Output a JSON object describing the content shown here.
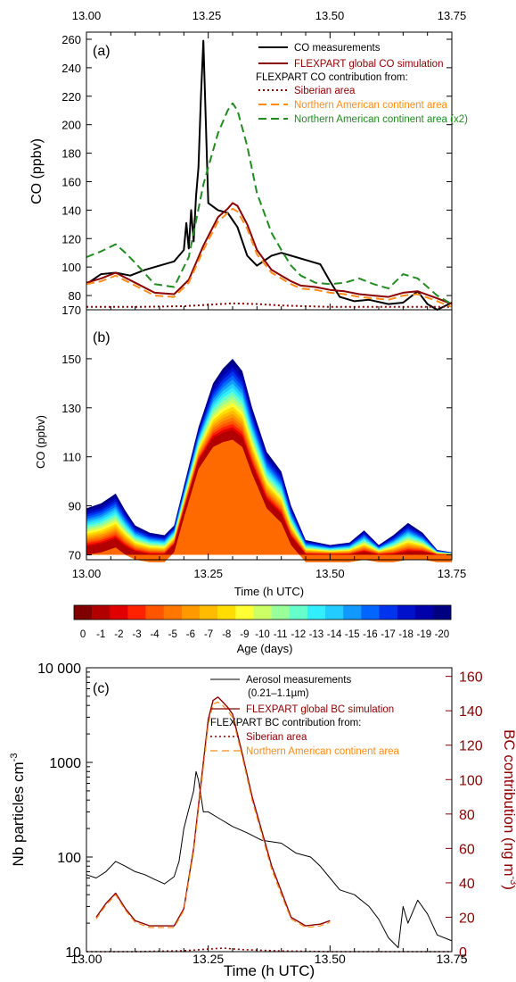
{
  "top_axis": {
    "ticks": [
      "13.00",
      "13.25",
      "13.50",
      "13.75"
    ]
  },
  "panel_a": {
    "label": "(a)",
    "ylabel": "CO (ppbv)",
    "yticks": [
      "80",
      "100",
      "120",
      "140",
      "160",
      "180",
      "200",
      "220",
      "240",
      "260"
    ],
    "legend": {
      "co_measurements": "CO measurements",
      "flexpart_global": "FLEXPART global CO simulation",
      "contribution_title": "FLEXPART CO contribution from:",
      "siberian": "Siberian area",
      "north_american": "Northern American continent area",
      "north_american_x2": "Northern American continent area (x2)"
    }
  },
  "panel_b": {
    "label": "(b)",
    "ylabel": "CO (ppbv)",
    "xlabel": "Time (h UTC)",
    "yticks": [
      "70",
      "90",
      "110",
      "130",
      "150",
      "170"
    ],
    "xticks": [
      "13.00",
      "13.25",
      "13.50",
      "13.75"
    ],
    "colorbar_ticks": [
      "0",
      "-1",
      "-2",
      "-3",
      "-4",
      "-5",
      "-6",
      "-7",
      "-8",
      "-9",
      "-10",
      "-11",
      "-12",
      "-13",
      "-14",
      "-15",
      "-16",
      "-17",
      "-18",
      "-19",
      "-20"
    ],
    "colorbar_label": "Age (days)"
  },
  "panel_c": {
    "label": "(c)",
    "ylabel_left": "Nb particles cm",
    "ylabel_left_sup": "-3",
    "ylabel_right": "BC contribution (ng m",
    "ylabel_right_sup": "-3",
    "ylabel_right_end": ")",
    "yticks_left": [
      "10",
      "100",
      "1000",
      "10 000"
    ],
    "yticks_right": [
      "0",
      "20",
      "40",
      "60",
      "80",
      "100",
      "120",
      "140",
      "160"
    ],
    "xticks": [
      "13.00",
      "13.25",
      "13.50",
      "13.75"
    ],
    "xlabel": "Time (h UTC)",
    "legend": {
      "aerosol": "Aerosol   measurements",
      "aerosol_range": "(0.21–1.1µm)",
      "flexpart_bc": "FLEXPART global BC simulation",
      "contribution_title": "FLEXPART BC contribution from:",
      "siberian": "Siberian area",
      "north_american": "Northern American continent area"
    }
  },
  "colors": {
    "measurements": "#000000",
    "global": "#8b0000",
    "siberian": "#8b0000",
    "north_american": "#ff8c1a",
    "north_american_x2": "#228b22",
    "right_axis": "#8b0000"
  },
  "colormap": [
    "#7f0000",
    "#b20000",
    "#e00000",
    "#ff2200",
    "#ff5500",
    "#ff7700",
    "#ff9900",
    "#ffbb00",
    "#ffdd00",
    "#ffff33",
    "#ccff66",
    "#99ff99",
    "#66ffcc",
    "#33eeff",
    "#22ccff",
    "#1199ff",
    "#0066ff",
    "#0033ee",
    "#0011cc",
    "#0000aa",
    "#000080"
  ],
  "chart_data": [
    {
      "type": "line",
      "panel": "a",
      "xlim": [
        13.0,
        13.75
      ],
      "ylim": [
        70,
        265
      ],
      "ylabel": "CO (ppbv)",
      "series": [
        {
          "name": "CO measurements",
          "x": [
            13.0,
            13.03,
            13.06,
            13.09,
            13.12,
            13.15,
            13.18,
            13.2,
            13.205,
            13.21,
            13.215,
            13.22,
            13.225,
            13.23,
            13.235,
            13.24,
            13.25,
            13.27,
            13.29,
            13.31,
            13.33,
            13.35,
            13.38,
            13.4,
            13.43,
            13.46,
            13.48,
            13.5,
            13.52,
            13.55,
            13.58,
            13.62,
            13.65,
            13.68,
            13.7,
            13.72,
            13.75
          ],
          "y": [
            88,
            95,
            96,
            94,
            98,
            101,
            104,
            112,
            131,
            113,
            140,
            118,
            150,
            170,
            220,
            259,
            145,
            140,
            138,
            128,
            108,
            101,
            108,
            110,
            107,
            104,
            102,
            90,
            79,
            76,
            77,
            74,
            75,
            83,
            74,
            70,
            75
          ]
        },
        {
          "name": "FLEXPART global CO simulation",
          "x": [
            13.0,
            13.03,
            13.06,
            13.1,
            13.14,
            13.18,
            13.21,
            13.24,
            13.27,
            13.29,
            13.3,
            13.31,
            13.33,
            13.35,
            13.38,
            13.4,
            13.42,
            13.44,
            13.47,
            13.5,
            13.53,
            13.56,
            13.59,
            13.62,
            13.65,
            13.68,
            13.72,
            13.75
          ],
          "y": [
            89,
            92,
            96,
            89,
            82,
            81,
            91,
            115,
            135,
            141,
            145,
            143,
            130,
            112,
            98,
            94,
            90,
            87,
            86,
            84,
            83,
            81,
            80,
            79,
            82,
            83,
            78,
            74
          ]
        },
        {
          "name": "Siberian area",
          "x": [
            13.0,
            13.1,
            13.2,
            13.25,
            13.3,
            13.35,
            13.4,
            13.5,
            13.6,
            13.75
          ],
          "y": [
            72,
            72,
            72.5,
            73.5,
            74.5,
            74,
            73,
            72,
            72,
            72
          ]
        },
        {
          "name": "Northern American continent area",
          "x": [
            13.0,
            13.03,
            13.06,
            13.1,
            13.14,
            13.18,
            13.21,
            13.24,
            13.27,
            13.29,
            13.3,
            13.31,
            13.33,
            13.35,
            13.38,
            13.4,
            13.42,
            13.44,
            13.47,
            13.5,
            13.53,
            13.56,
            13.59,
            13.62,
            13.65,
            13.68,
            13.72,
            13.75
          ],
          "y": [
            88,
            90,
            94,
            87,
            80,
            79,
            89,
            112,
            132,
            138,
            141,
            139,
            127,
            109,
            96,
            92,
            88,
            85,
            84,
            82,
            81,
            79,
            78,
            77,
            80,
            81,
            76,
            72
          ]
        },
        {
          "name": "Northern American continent area (x2)",
          "x": [
            13.0,
            13.03,
            13.06,
            13.08,
            13.1,
            13.14,
            13.18,
            13.21,
            13.24,
            13.27,
            13.29,
            13.3,
            13.31,
            13.33,
            13.35,
            13.38,
            13.4,
            13.42,
            13.44,
            13.47,
            13.5,
            13.53,
            13.56,
            13.59,
            13.62,
            13.65,
            13.68,
            13.72,
            13.75
          ],
          "y": [
            107,
            111,
            116,
            110,
            103,
            88,
            86,
            107,
            158,
            194,
            210,
            215,
            210,
            185,
            152,
            124,
            112,
            101,
            94,
            89,
            88,
            89,
            92,
            88,
            85,
            95,
            92,
            80,
            74
          ]
        }
      ]
    },
    {
      "type": "area",
      "panel": "b",
      "xlim": [
        13.0,
        13.75
      ],
      "ylim": [
        68,
        170
      ],
      "ylabel": "CO (ppbv)",
      "xlabel": "Time (h UTC)",
      "x": [
        13.0,
        13.03,
        13.06,
        13.08,
        13.1,
        13.13,
        13.16,
        13.18,
        13.2,
        13.23,
        13.26,
        13.28,
        13.3,
        13.32,
        13.34,
        13.37,
        13.4,
        13.42,
        13.45,
        13.5,
        13.54,
        13.57,
        13.6,
        13.63,
        13.66,
        13.69,
        13.72,
        13.75
      ],
      "total": [
        89,
        91,
        95,
        88,
        82,
        79,
        78,
        82,
        98,
        122,
        140,
        146,
        150,
        145,
        130,
        112,
        104,
        90,
        76,
        74,
        75,
        80,
        74,
        78,
        83,
        79,
        72,
        71
      ],
      "layers_by_age": [
        {
          "age_days": -2,
          "values": [
            73,
            74,
            76,
            73,
            71,
            70,
            70,
            74,
            88,
            108,
            117,
            119,
            120,
            117,
            106,
            92,
            86,
            77,
            70,
            70,
            70,
            71,
            70,
            70,
            71,
            71,
            70,
            70
          ]
        },
        {
          "age_days": -6,
          "values": [
            76,
            77,
            80,
            76,
            73,
            71,
            71,
            76,
            92,
            115,
            130,
            135,
            137,
            133,
            119,
            102,
            94,
            82,
            72,
            71,
            71,
            74,
            71,
            72,
            74,
            73,
            70,
            70
          ]
        },
        {
          "age_days": -10,
          "values": [
            81,
            82,
            86,
            81,
            76,
            74,
            74,
            79,
            95,
            118,
            135,
            141,
            144,
            139,
            125,
            107,
            99,
            86,
            73,
            72,
            72,
            76,
            72,
            74,
            78,
            75,
            71,
            70
          ]
        },
        {
          "age_days": -16,
          "values": [
            85,
            87,
            91,
            85,
            79,
            77,
            76,
            81,
            97,
            120,
            138,
            144,
            147,
            142,
            128,
            110,
            102,
            88,
            75,
            73,
            74,
            78,
            73,
            76,
            81,
            77,
            71,
            70
          ]
        },
        {
          "age_days": -20,
          "values": [
            89,
            91,
            95,
            88,
            82,
            79,
            78,
            82,
            98,
            122,
            140,
            146,
            150,
            145,
            130,
            112,
            104,
            90,
            76,
            74,
            75,
            80,
            74,
            78,
            83,
            79,
            72,
            71
          ]
        }
      ]
    },
    {
      "type": "line",
      "panel": "c",
      "xlim": [
        13.0,
        13.75
      ],
      "ylim_left": [
        10,
        10000
      ],
      "ylim_right": [
        0,
        165
      ],
      "series": [
        {
          "name": "Aerosol   measurements",
          "axis": "left",
          "x": [
            13.0,
            13.02,
            13.04,
            13.06,
            13.08,
            13.1,
            13.12,
            13.14,
            13.16,
            13.18,
            13.19,
            13.2,
            13.21,
            13.22,
            13.225,
            13.23,
            13.24,
            13.25,
            13.27,
            13.3,
            13.33,
            13.36,
            13.4,
            13.43,
            13.46,
            13.48,
            13.5,
            13.52,
            13.55,
            13.58,
            13.6,
            13.62,
            13.64,
            13.65,
            13.66,
            13.68,
            13.7,
            13.72,
            13.75
          ],
          "y": [
            65,
            60,
            70,
            90,
            80,
            70,
            65,
            58,
            52,
            62,
            90,
            200,
            320,
            500,
            800,
            650,
            300,
            300,
            260,
            210,
            180,
            150,
            140,
            110,
            100,
            80,
            60,
            45,
            40,
            30,
            22,
            14,
            11,
            30,
            20,
            35,
            25,
            15,
            13
          ]
        },
        {
          "name": "FLEXPART global BC simulation",
          "axis": "right",
          "x": [
            13.02,
            13.04,
            13.06,
            13.08,
            13.1,
            13.13,
            13.16,
            13.18,
            13.2,
            13.22,
            13.24,
            13.25,
            13.26,
            13.27,
            13.28,
            13.29,
            13.3,
            13.32,
            13.34,
            13.36,
            13.38,
            13.4,
            13.42,
            13.45,
            13.48,
            13.5
          ],
          "y": [
            20,
            28,
            34,
            25,
            18,
            15,
            15,
            15,
            25,
            60,
            110,
            135,
            146,
            148,
            145,
            142,
            138,
            115,
            90,
            70,
            50,
            35,
            20,
            15,
            16,
            18
          ]
        },
        {
          "name": "Siberian area",
          "axis": "right",
          "x": [
            13.0,
            13.1,
            13.2,
            13.25,
            13.28,
            13.32,
            13.4,
            13.5,
            13.75
          ],
          "y": [
            0,
            0,
            0.5,
            1.5,
            2,
            1.2,
            0.4,
            0,
            0
          ]
        },
        {
          "name": "Northern American continent area",
          "axis": "right",
          "x": [
            13.02,
            13.04,
            13.06,
            13.08,
            13.1,
            13.13,
            13.16,
            13.18,
            13.2,
            13.22,
            13.24,
            13.25,
            13.26,
            13.27,
            13.28,
            13.29,
            13.3,
            13.32,
            13.34,
            13.36,
            13.38,
            13.4,
            13.42,
            13.45,
            13.48,
            13.5
          ],
          "y": [
            19,
            27,
            33,
            24,
            17,
            14,
            14,
            14,
            24,
            58,
            107,
            132,
            144,
            145,
            143,
            140,
            136,
            113,
            88,
            68,
            48,
            33,
            19,
            14,
            15,
            17
          ]
        }
      ]
    }
  ]
}
